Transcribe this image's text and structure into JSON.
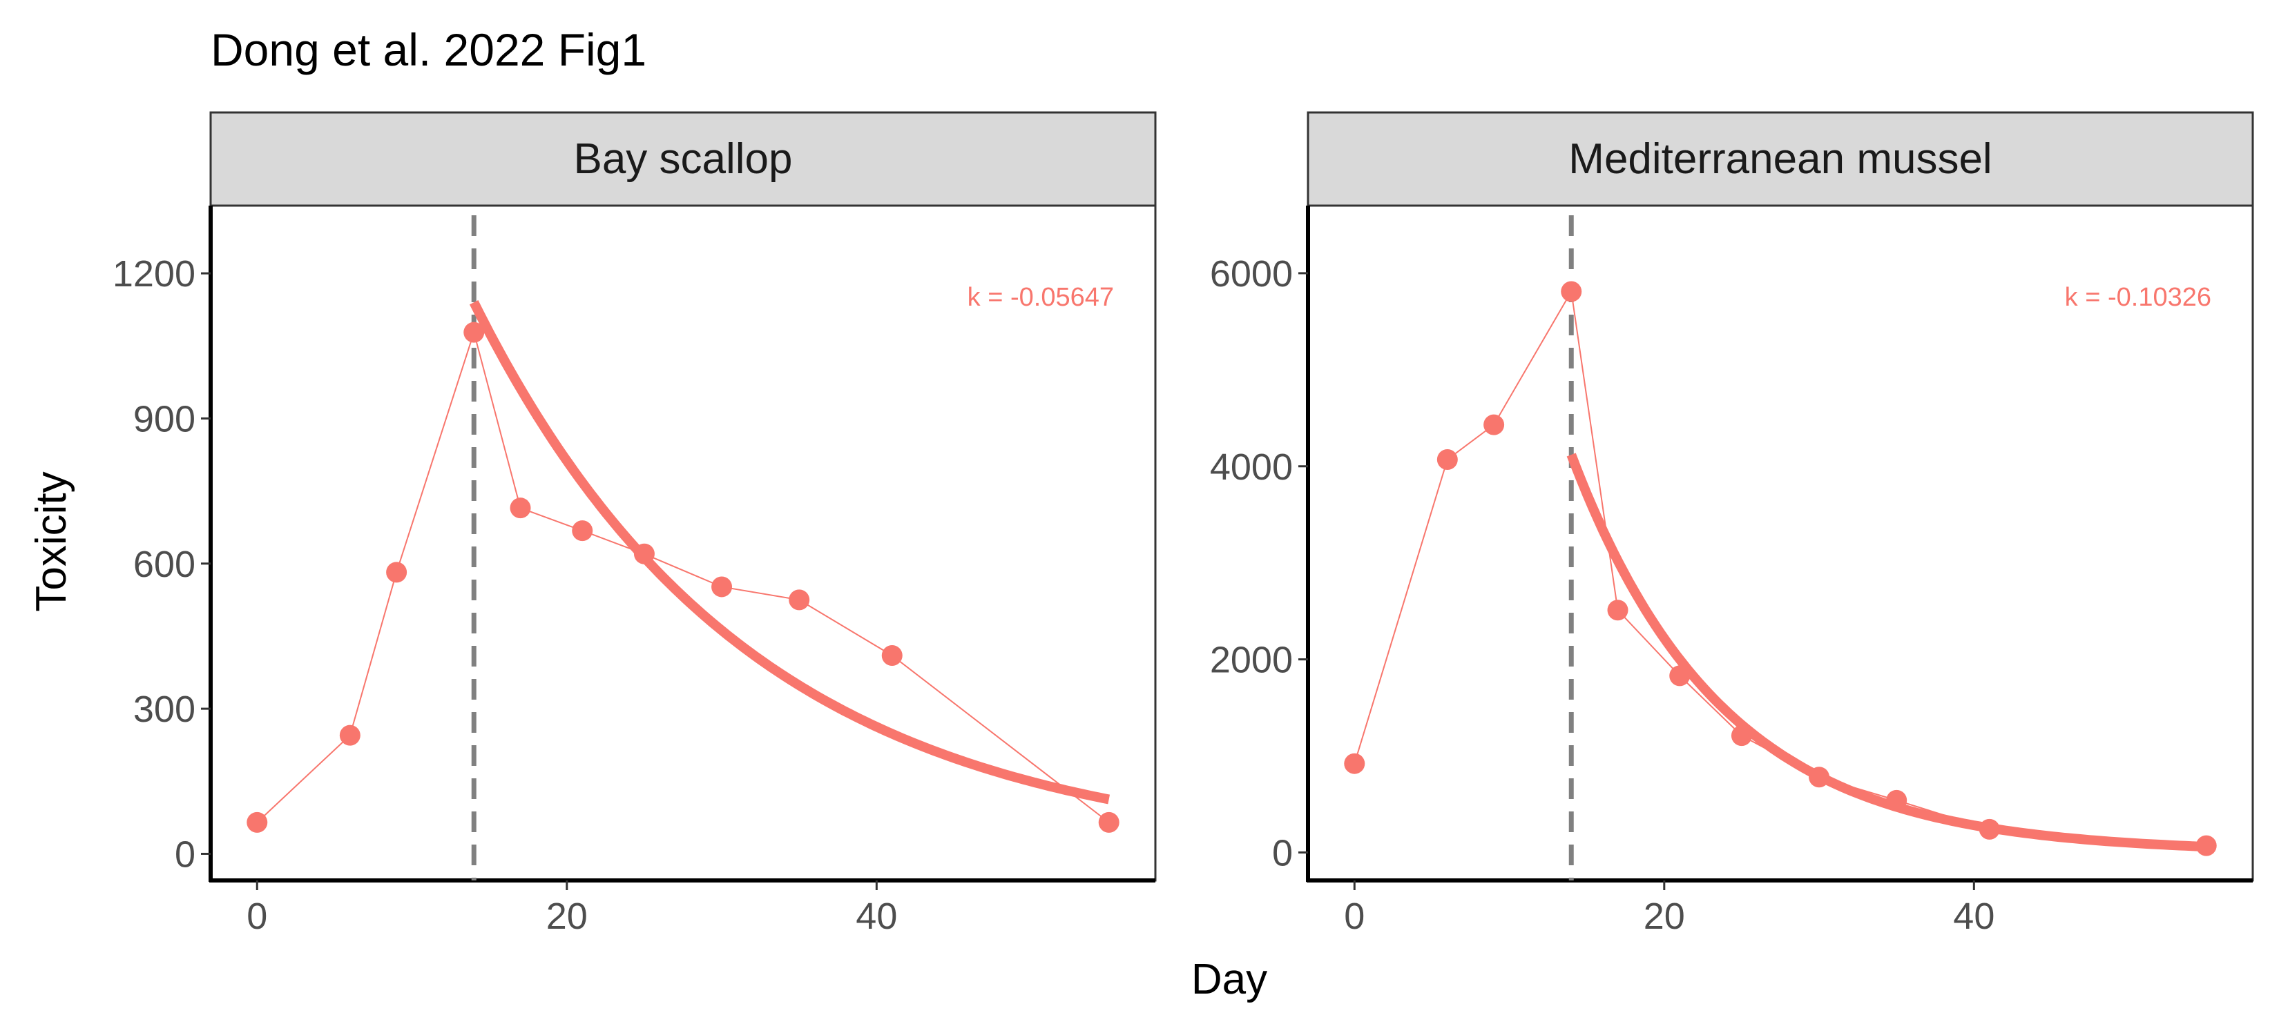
{
  "title": "Dong et al. 2022 Fig1",
  "colors": {
    "series": "#F8766D",
    "strip_fill": "#D9D9D9",
    "vline": "#808080",
    "axis": "#000000"
  },
  "xlabel": "Day",
  "ylabel": "Toxicity",
  "chart_data": [
    {
      "type": "line",
      "panel": "Bay scallop",
      "x": [
        0,
        6,
        9,
        14,
        17,
        21,
        25,
        30,
        35,
        41,
        55
      ],
      "y": [
        65,
        245,
        582,
        1078,
        715,
        668,
        620,
        552,
        525,
        410,
        65
      ],
      "fit": {
        "k": -0.05647,
        "x_start": 14,
        "x_end": 55,
        "y_start": 1140,
        "label": "k = -0.05647"
      },
      "vline_x": 14,
      "xlim": [
        -3,
        58
      ],
      "ylim": [
        -55,
        1340
      ],
      "xticks": [
        0,
        20,
        40
      ],
      "yticks": [
        0,
        300,
        600,
        900,
        1200
      ]
    },
    {
      "type": "line",
      "panel": "Mediterranean mussel",
      "x": [
        0,
        6,
        9,
        14,
        17,
        21,
        25,
        30,
        35,
        41,
        55
      ],
      "y": [
        920,
        4070,
        4430,
        5810,
        2510,
        1830,
        1210,
        780,
        540,
        240,
        70
      ],
      "fit": {
        "k": -0.10326,
        "x_start": 14,
        "x_end": 55,
        "y_start": 4120,
        "label": "k = -0.10326"
      },
      "vline_x": 14,
      "xlim": [
        -3,
        58
      ],
      "ylim": [
        -290,
        6700
      ],
      "xticks": [
        0,
        20,
        40
      ],
      "yticks": [
        0,
        2000,
        4000,
        6000
      ]
    }
  ]
}
